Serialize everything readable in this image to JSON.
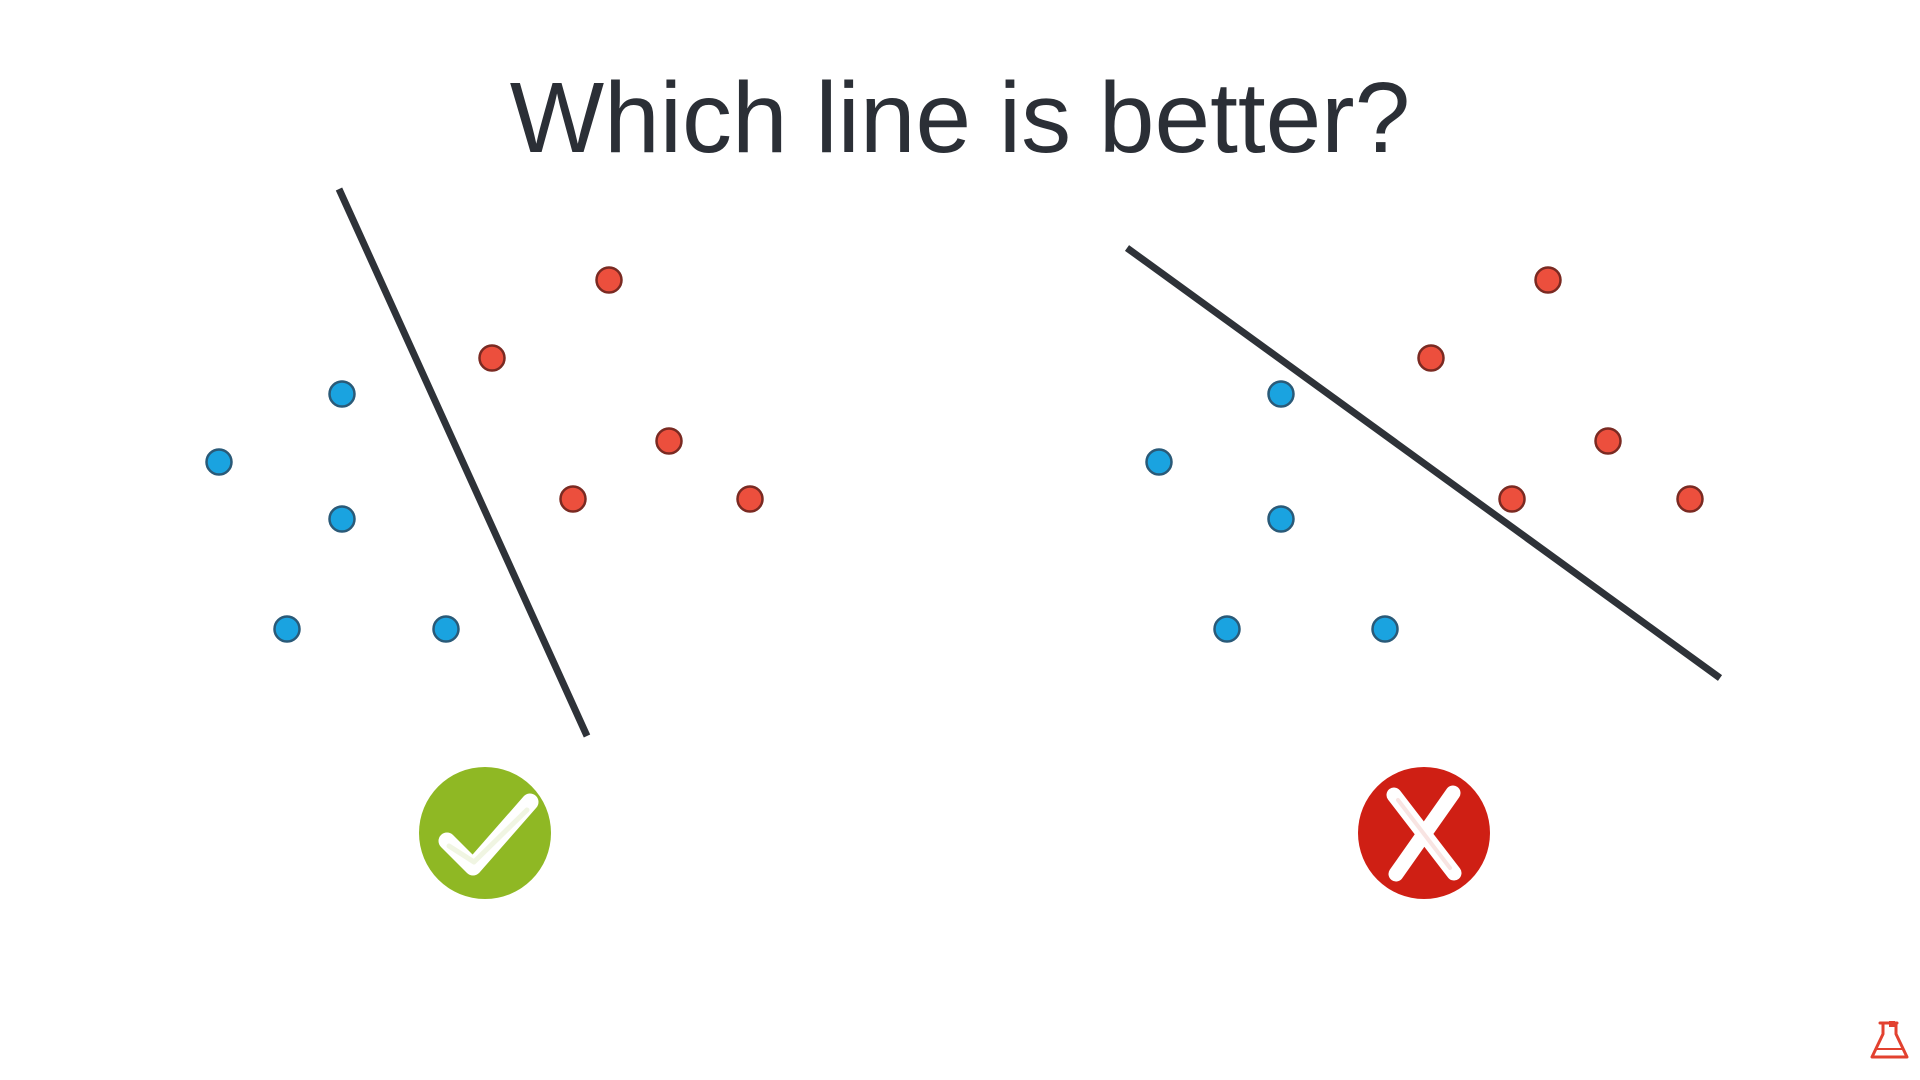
{
  "slide": {
    "title": "Which line is better?"
  },
  "colors": {
    "blue_point": "#1aa3e0",
    "red_point": "#ec4f3d",
    "line": "#2e3238",
    "good_badge": "#8fb824",
    "bad_badge": "#cf1f14",
    "title": "#2b2f36"
  },
  "diagram": {
    "panels": [
      {
        "name": "left-panel",
        "verdict": "good",
        "badge_icon": "checkmark-icon"
      },
      {
        "name": "right-panel",
        "verdict": "bad",
        "badge_icon": "x-mark-icon"
      }
    ],
    "point_classes": [
      "blue",
      "red"
    ]
  },
  "logo": {
    "icon": "flask-icon"
  }
}
